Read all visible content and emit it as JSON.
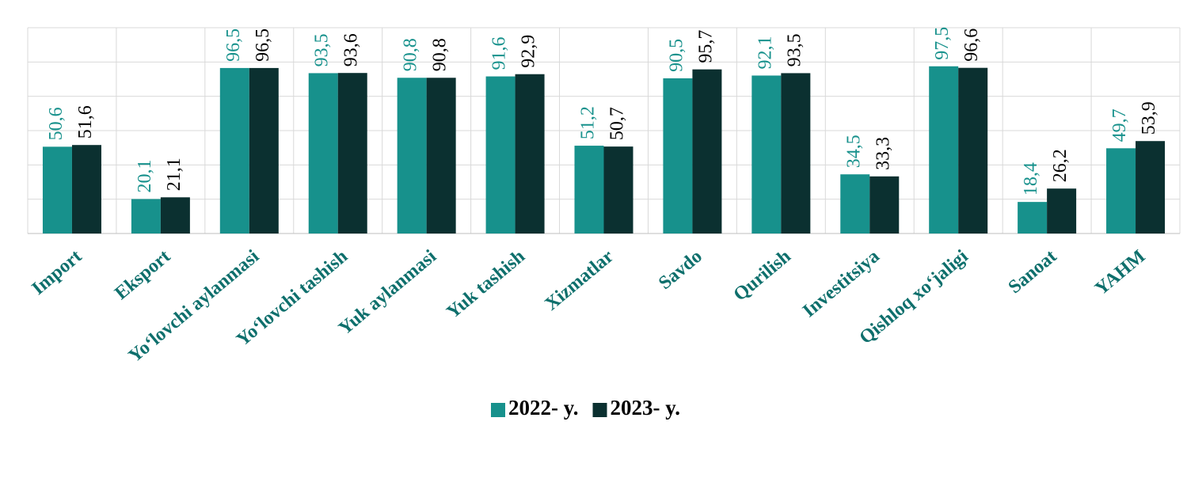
{
  "chart_data": {
    "type": "bar",
    "categories": [
      "Import",
      "Eksport",
      "Yo‘lovchi aylanmasi",
      "Yo‘lovchi tashish",
      "Yuk aylanmasi",
      "Yuk tashish",
      "Xizmatlar",
      "Savdo",
      "Qurilish",
      "Investitsiya",
      "Qishloq xo‘jaligi",
      "Sanoat",
      "YAHM"
    ],
    "series": [
      {
        "name": "2022- y.",
        "color": "#17918c",
        "values": [
          50.6,
          20.1,
          96.5,
          93.5,
          90.8,
          91.6,
          51.2,
          90.5,
          92.1,
          34.5,
          97.5,
          18.4,
          49.7
        ],
        "value_labels": [
          "50,6",
          "20,1",
          "96,5",
          "93,5",
          "90,8",
          "91,6",
          "51,2",
          "90,5",
          "92,1",
          "34,5",
          "97,5",
          "18,4",
          "49,7"
        ]
      },
      {
        "name": "2023- y.",
        "color": "#0b3030",
        "values": [
          51.6,
          21.1,
          96.5,
          93.6,
          90.8,
          92.9,
          50.7,
          95.7,
          93.5,
          33.3,
          96.6,
          26.2,
          53.9
        ],
        "value_labels": [
          "51,6",
          "21,1",
          "96,5",
          "93,6",
          "90,8",
          "92,9",
          "50,7",
          "95,7",
          "93,5",
          "33,3",
          "96,6",
          "26,2",
          "53,9"
        ]
      }
    ],
    "ylim": [
      0,
      120
    ],
    "yticks": [
      0,
      20,
      40,
      60,
      80,
      100,
      120
    ],
    "grid": true,
    "legend": "bottom"
  }
}
